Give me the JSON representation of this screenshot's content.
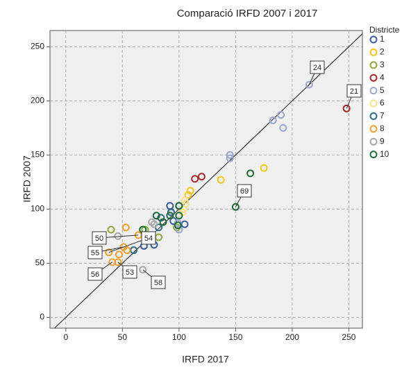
{
  "chart_data": {
    "type": "scatter",
    "title": "Comparació IRFD 2007 i 2017",
    "x_label": "IRFD 2017",
    "y_label": "IRFD 2007",
    "legend_title": "Districte",
    "xlim": [
      -14,
      262
    ],
    "ylim": [
      -10,
      265
    ],
    "xticks": [
      0,
      50,
      100,
      150,
      200,
      250
    ],
    "yticks": [
      0,
      50,
      100,
      150,
      200,
      250
    ],
    "grid": true,
    "legend": "right",
    "series": [
      {
        "name": "1",
        "color": "#3a5ba0",
        "x": [
          92,
          93,
          105,
          69,
          78,
          95
        ],
        "values": [
          103,
          97,
          86,
          66,
          67,
          89
        ]
      },
      {
        "name": "2",
        "color": "#f5c518",
        "x": [
          175,
          137,
          110,
          108
        ],
        "values": [
          138,
          127,
          117,
          113
        ]
      },
      {
        "name": "3",
        "color": "#8fa83a",
        "x": [
          40,
          82,
          98,
          70
        ],
        "values": [
          81,
          74,
          83,
          81
        ]
      },
      {
        "name": "4",
        "color": "#a52a2a",
        "x": [
          248,
          114,
          120
        ],
        "values": [
          193,
          128,
          130
        ]
      },
      {
        "name": "5",
        "color": "#9aa6d0",
        "x": [
          215,
          190,
          183,
          192,
          145,
          145,
          100,
          99
        ],
        "values": [
          215,
          187,
          182,
          175,
          150,
          147,
          81,
          87
        ]
      },
      {
        "name": "6",
        "color": "#f7e08a",
        "x": [
          104,
          106,
          103,
          105
        ],
        "values": [
          100,
          105,
          97,
          108
        ]
      },
      {
        "name": "7",
        "color": "#2e6b8a",
        "x": [
          74,
          93,
          82,
          60,
          100,
          84
        ],
        "values": [
          72,
          97,
          83,
          62,
          103,
          92
        ]
      },
      {
        "name": "8",
        "color": "#f0a030",
        "x": [
          53,
          38,
          41,
          47,
          51,
          64,
          54,
          46
        ],
        "values": [
          83,
          60,
          51,
          58,
          65,
          76,
          62,
          51
        ]
      },
      {
        "name": "9",
        "color": "#a8a8a8",
        "x": [
          68,
          76,
          78,
          46
        ],
        "values": [
          44,
          88,
          86,
          75
        ]
      },
      {
        "name": "10",
        "color": "#1e6b3a",
        "x": [
          163,
          150,
          100,
          80,
          92,
          68,
          86,
          100,
          99
        ],
        "values": [
          133,
          102,
          103,
          94,
          94,
          81,
          88,
          94,
          85
        ]
      }
    ],
    "annotations": [
      "24",
      "21",
      "69",
      "50",
      "54",
      "55",
      "56",
      "53",
      "58"
    ]
  }
}
